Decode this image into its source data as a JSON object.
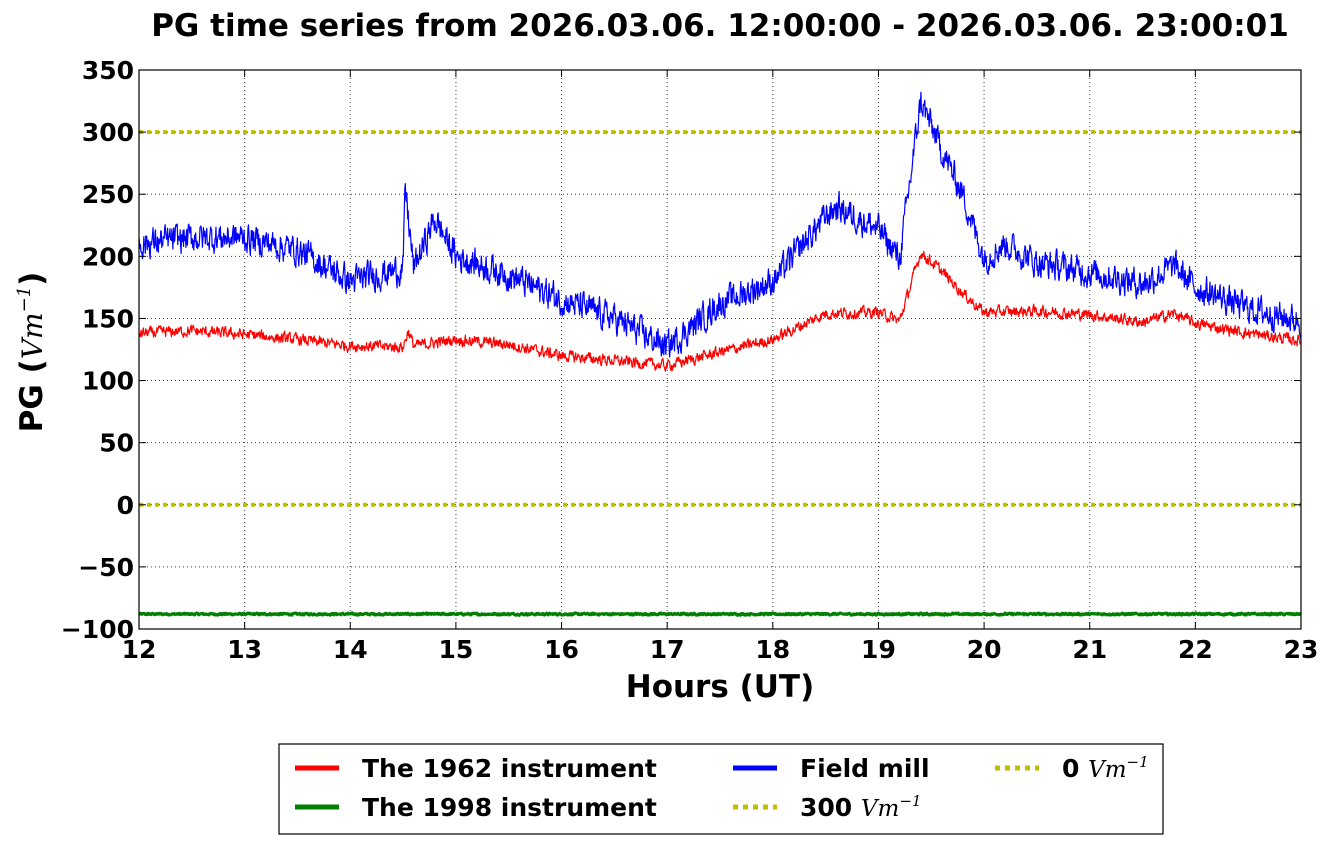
{
  "chart_data": {
    "type": "line",
    "title": "PG time series from 2026.03.06. 12:00:00 - 2026.03.06. 23:00:01",
    "xlabel": "Hours (UT)",
    "ylabel_text": "PG (",
    "ylabel_unit": "Vm",
    "ylabel_exp": "−1",
    "ylabel_close": ")",
    "xlim": [
      12,
      23
    ],
    "ylim": [
      -100,
      350
    ],
    "x_ticks": [
      12,
      13,
      14,
      15,
      16,
      17,
      18,
      19,
      20,
      21,
      22,
      23
    ],
    "x_tick_labels": [
      "12",
      "13",
      "14",
      "15",
      "16",
      "17",
      "18",
      "19",
      "20",
      "21",
      "22",
      "23"
    ],
    "y_ticks": [
      -100,
      -50,
      0,
      50,
      100,
      150,
      200,
      250,
      300,
      350
    ],
    "y_tick_labels": [
      "−100",
      "−50",
      "0",
      "50",
      "100",
      "150",
      "200",
      "250",
      "300",
      "350"
    ],
    "grid": true,
    "legend_position": "bottom-center",
    "series": [
      {
        "name": "The 1962 instrument",
        "color": "#ff0000",
        "noise": 7,
        "x": [
          12,
          12.5,
          13,
          13.5,
          14,
          14.5,
          14.55,
          14.6,
          15,
          15.5,
          16,
          16.5,
          17,
          17.5,
          18,
          18.5,
          19,
          19.2,
          19.4,
          19.6,
          19.8,
          20,
          20.5,
          21,
          21.5,
          21.8,
          22,
          22.5,
          23
        ],
        "y": [
          138,
          140,
          137,
          133,
          128,
          127,
          140,
          128,
          133,
          129,
          120,
          116,
          112,
          123,
          133,
          154,
          155,
          148,
          203,
          188,
          170,
          155,
          156,
          153,
          147,
          154,
          146,
          138,
          132
        ]
      },
      {
        "name": "Field mill",
        "color": "#0000ff",
        "noise": 18,
        "x": [
          12,
          12.5,
          13,
          13.5,
          14,
          14.5,
          14.52,
          14.6,
          14.8,
          15,
          15.5,
          16,
          16.5,
          17,
          17.5,
          18,
          18.5,
          18.6,
          19,
          19.2,
          19.4,
          19.6,
          19.8,
          20,
          20.2,
          20.5,
          21,
          21.5,
          21.8,
          22,
          22.5,
          23
        ],
        "y": [
          210,
          215,
          215,
          205,
          180,
          190,
          255,
          190,
          230,
          200,
          185,
          165,
          150,
          127,
          162,
          180,
          232,
          240,
          222,
          198,
          325,
          285,
          250,
          198,
          210,
          195,
          187,
          178,
          192,
          175,
          158,
          148
        ]
      },
      {
        "name": "The 1998 instrument",
        "color": "#008000",
        "noise": 1.2,
        "x": [
          12,
          23
        ],
        "y": [
          -88,
          -88
        ]
      }
    ],
    "reference_lines": [
      {
        "name": "300 Vm−1",
        "y": 300,
        "color": "#bfbf00"
      },
      {
        "name": "0 Vm−1",
        "y": 0,
        "color": "#bfbf00"
      }
    ],
    "legend": [
      {
        "label": "The 1962 instrument",
        "color": "#ff0000",
        "style": "solid"
      },
      {
        "label": "The 1998 instrument",
        "color": "#008000",
        "style": "solid"
      },
      {
        "label": "Field mill",
        "color": "#0000ff",
        "style": "solid"
      },
      {
        "label": "300 ",
        "unit": "Vm",
        "exp": "−1",
        "color": "#bfbf00",
        "style": "dotted"
      },
      {
        "label": "0 ",
        "unit": "Vm",
        "exp": "−1",
        "color": "#bfbf00",
        "style": "dotted"
      }
    ]
  }
}
